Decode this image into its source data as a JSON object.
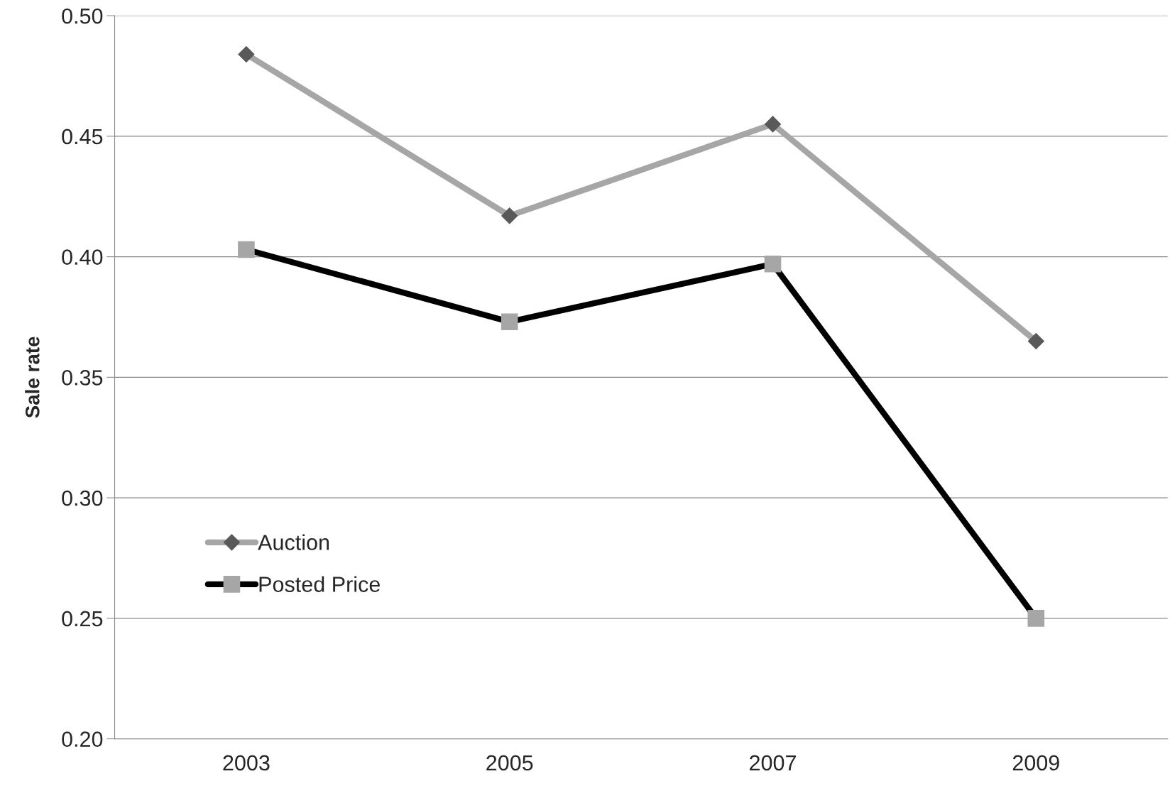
{
  "chart_data": {
    "type": "line",
    "ylabel": "Sale rate",
    "categories": [
      "2003",
      "2005",
      "2007",
      "2009"
    ],
    "series": [
      {
        "name": "Auction",
        "color": "#a6a6a6",
        "marker": "diamond",
        "values": [
          0.484,
          0.417,
          0.455,
          0.365
        ]
      },
      {
        "name": "Posted Price",
        "color": "#000000",
        "marker": "square",
        "values": [
          0.403,
          0.373,
          0.397,
          0.25
        ]
      }
    ],
    "ylim": [
      0.2,
      0.5
    ],
    "yticks": [
      {
        "value": 0.2,
        "label": "0.20"
      },
      {
        "value": 0.25,
        "label": "0.25"
      },
      {
        "value": 0.3,
        "label": "0.30"
      },
      {
        "value": 0.35,
        "label": "0.35"
      },
      {
        "value": 0.4,
        "label": "0.40"
      },
      {
        "value": 0.45,
        "label": "0.45"
      },
      {
        "value": 0.5,
        "label": "0.50"
      }
    ],
    "grid": "y",
    "legend": "left"
  }
}
